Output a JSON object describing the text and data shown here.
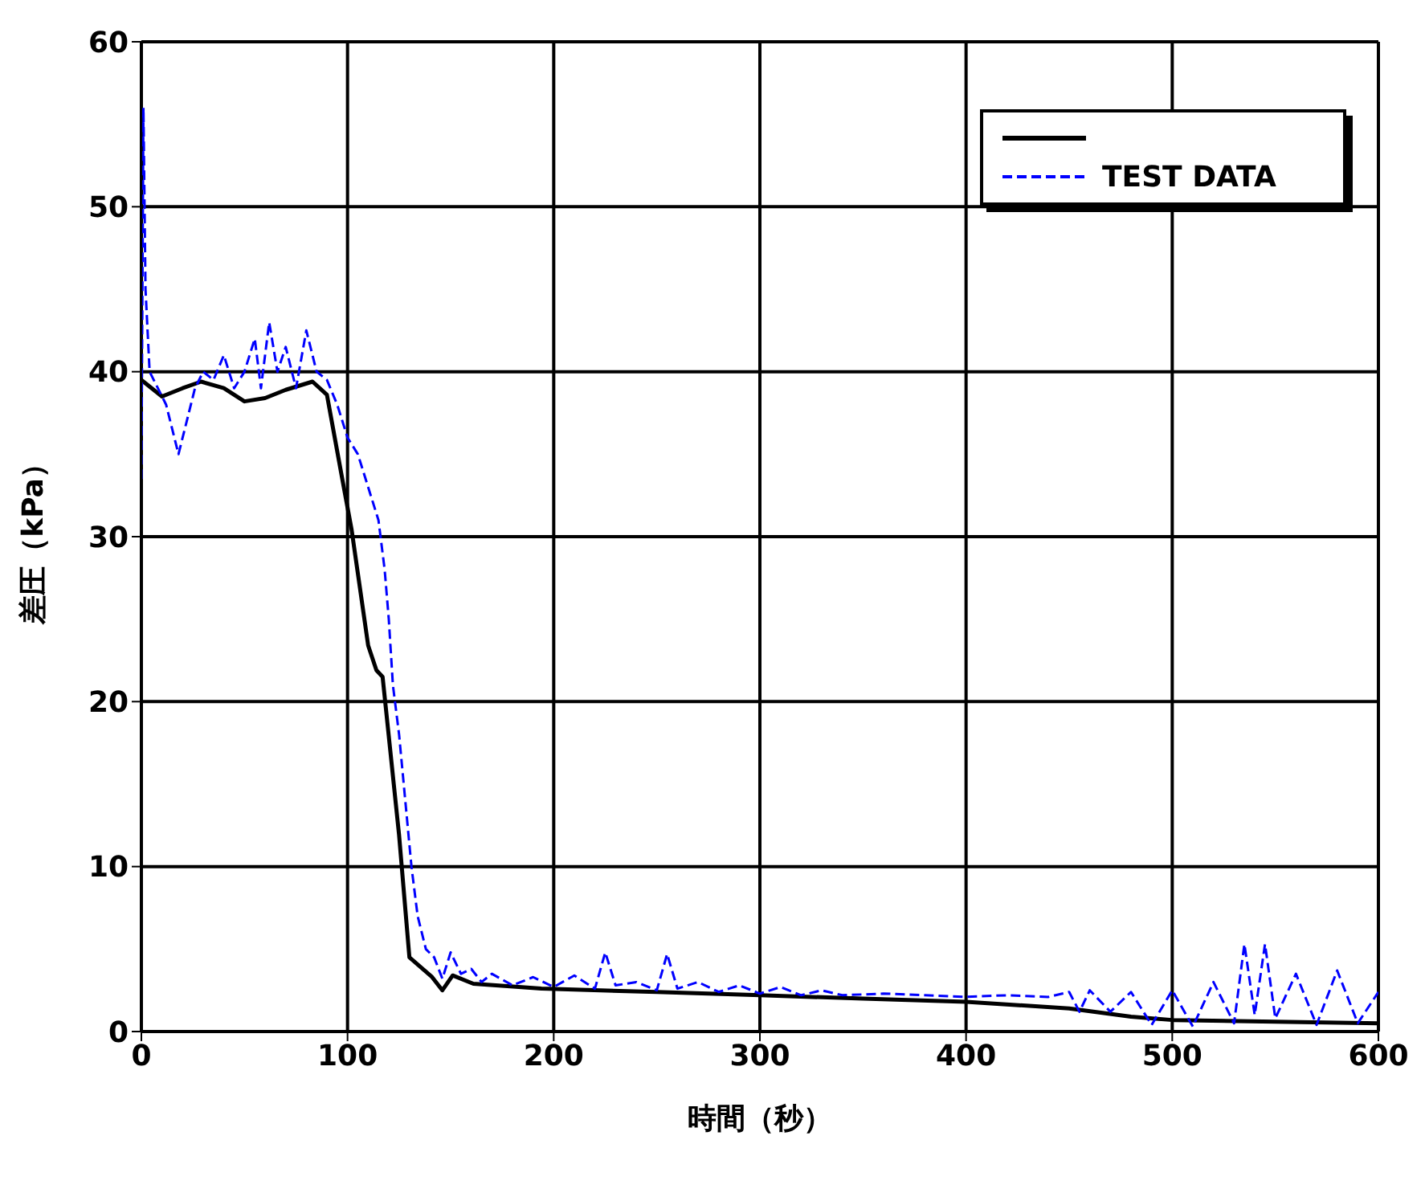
{
  "chart_data": {
    "type": "line",
    "xlabel": "時間（秒）",
    "ylabel": "差圧（kPa）",
    "xlim": [
      0,
      600
    ],
    "ylim": [
      0,
      60
    ],
    "xticks": [
      0,
      100,
      200,
      300,
      400,
      500,
      600
    ],
    "yticks": [
      0,
      10,
      20,
      30,
      40,
      50,
      60
    ],
    "grid": true,
    "legend": "top right",
    "series": [
      {
        "color": "#000000",
        "line_style": "solid",
        "x": [
          0,
          10,
          20,
          29,
          40,
          50,
          60,
          70,
          83,
          90,
          97,
          102,
          110,
          114,
          117,
          125,
          130,
          141,
          146,
          151,
          161,
          194,
          250,
          300,
          350,
          400,
          450,
          480,
          500,
          550,
          600
        ],
        "values": [
          39.5,
          38.5,
          39,
          39.4,
          39,
          38.2,
          38.4,
          38.9,
          39.4,
          38.6,
          33.8,
          30.4,
          23.4,
          21.9,
          21.5,
          11.9,
          4.5,
          3.3,
          2.5,
          3.4,
          2.9,
          2.6,
          2.4,
          2.2,
          2,
          1.8,
          1.4,
          0.9,
          0.7,
          0.6,
          0.5
        ]
      },
      {
        "name": "TEST DATA",
        "color": "#0000ff",
        "line_style": "dashed",
        "x": [
          0,
          1,
          2,
          4,
          8,
          12,
          18,
          22,
          26,
          30,
          35,
          40,
          45,
          50,
          55,
          58,
          62,
          66,
          70,
          75,
          80,
          85,
          90,
          95,
          100,
          105,
          110,
          115,
          118,
          120,
          122,
          125,
          128,
          131,
          134,
          138,
          142,
          146,
          150,
          155,
          160,
          165,
          170,
          180,
          190,
          200,
          210,
          220,
          225,
          230,
          240,
          250,
          255,
          260,
          270,
          280,
          290,
          300,
          310,
          320,
          330,
          340,
          360,
          380,
          400,
          420,
          440,
          450,
          455,
          460,
          470,
          480,
          490,
          500,
          510,
          520,
          530,
          535,
          540,
          545,
          550,
          560,
          570,
          580,
          590,
          600
        ],
        "values": [
          33.5,
          56,
          45,
          40,
          39,
          38,
          35,
          37,
          39,
          40,
          39.5,
          41,
          39,
          40,
          42,
          39,
          43,
          40,
          41.5,
          39,
          42.5,
          40,
          39.5,
          38,
          36,
          35,
          33,
          31,
          28,
          25,
          21,
          18,
          14,
          10,
          7,
          5,
          4.5,
          3.2,
          4.8,
          3.5,
          3.8,
          3,
          3.5,
          2.8,
          3.3,
          2.7,
          3.4,
          2.6,
          4.8,
          2.8,
          3,
          2.5,
          4.7,
          2.6,
          3,
          2.4,
          2.8,
          2.3,
          2.7,
          2.2,
          2.5,
          2.2,
          2.3,
          2.2,
          2.1,
          2.2,
          2.1,
          2.4,
          1.2,
          2.5,
          1.2,
          2.4,
          0.4,
          2.5,
          0.3,
          3,
          0.5,
          5.3,
          1,
          5.3,
          0.8,
          3.5,
          0.4,
          3.7,
          0.5,
          2.4
        ]
      }
    ]
  }
}
